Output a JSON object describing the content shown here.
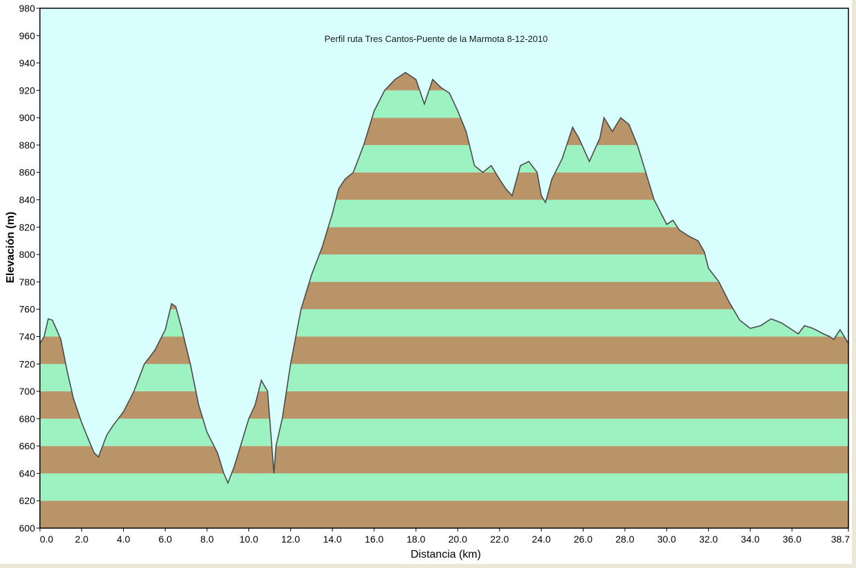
{
  "chart_data": {
    "type": "area",
    "title": "Perfil ruta Tres Cantos-Puente de la Marmota 8-12-2010",
    "xlabel": "Distancia   (km)",
    "ylabel": "Elevación (m)",
    "xlim": [
      0,
      38.7
    ],
    "ylim": [
      600,
      980
    ],
    "x_ticks": [
      "0.0",
      "2.0",
      "4.0",
      "6.0",
      "8.0",
      "10.0",
      "12.0",
      "14.0",
      "16.0",
      "18.0",
      "20.0",
      "22.0",
      "24.0",
      "26.0",
      "28.0",
      "30.0",
      "32.0",
      "34.0",
      "36.0",
      "38.7"
    ],
    "x_tick_values": [
      0,
      2,
      4,
      6,
      8,
      10,
      12,
      14,
      16,
      18,
      20,
      22,
      24,
      26,
      28,
      30,
      32,
      34,
      36,
      38.7
    ],
    "y_ticks": [
      600,
      620,
      640,
      660,
      680,
      700,
      720,
      740,
      760,
      780,
      800,
      820,
      840,
      860,
      880,
      900,
      920,
      940,
      960,
      980
    ],
    "band_step": 20,
    "grid": false,
    "legend": "none",
    "colors": {
      "plot_bg": "#d8fefe",
      "band_green": "#9cf2c0",
      "band_brown": "#b89468",
      "line": "#4a4a4a",
      "sky_above": "#d8fefe"
    },
    "series": [
      {
        "x": [
          0,
          0.2,
          0.4,
          0.6,
          0.8,
          1.0,
          1.3,
          1.6,
          2.0,
          2.4,
          2.6,
          2.8,
          3.0,
          3.2,
          3.5,
          4.0,
          4.5,
          5.0,
          5.5,
          6.0,
          6.3,
          6.5,
          6.8,
          7.2,
          7.6,
          8.0,
          8.5,
          8.8,
          9.0,
          9.3,
          9.6,
          10.0,
          10.3,
          10.6,
          10.9,
          11.1,
          11.2,
          11.3,
          11.6,
          12.0,
          12.5,
          13.0,
          13.5,
          14.0,
          14.3,
          14.6,
          15.0,
          15.5,
          16.0,
          16.5,
          17.0,
          17.5,
          18.0,
          18.4,
          18.8,
          19.2,
          19.6,
          20.0,
          20.4,
          20.8,
          21.2,
          21.6,
          22.0,
          22.3,
          22.6,
          23.0,
          23.4,
          23.8,
          24.0,
          24.2,
          24.5,
          25.0,
          25.5,
          25.8,
          26.3,
          26.8,
          27.0,
          27.4,
          27.8,
          28.2,
          28.6,
          29.0,
          29.4,
          30.0,
          30.3,
          30.6,
          31.0,
          31.5,
          31.8,
          32.0,
          32.5,
          33.0,
          33.5,
          34.0,
          34.5,
          35.0,
          35.5,
          36.0,
          36.3,
          36.6,
          37.0,
          37.5,
          37.8,
          38.0,
          38.3,
          38.7
        ],
        "y": [
          735,
          740,
          753,
          752,
          745,
          738,
          715,
          695,
          677,
          662,
          655,
          652,
          660,
          668,
          675,
          685,
          700,
          720,
          730,
          745,
          764,
          762,
          745,
          720,
          690,
          670,
          655,
          640,
          633,
          645,
          660,
          680,
          690,
          708,
          700,
          660,
          640,
          660,
          680,
          720,
          760,
          785,
          805,
          830,
          848,
          855,
          860,
          880,
          905,
          920,
          928,
          933,
          928,
          910,
          928,
          922,
          918,
          905,
          890,
          865,
          860,
          865,
          855,
          848,
          843,
          865,
          868,
          860,
          843,
          838,
          855,
          870,
          893,
          885,
          868,
          885,
          900,
          890,
          900,
          895,
          880,
          860,
          840,
          822,
          825,
          818,
          814,
          810,
          802,
          790,
          780,
          765,
          752,
          746,
          748,
          753,
          750,
          745,
          742,
          748,
          746,
          742,
          740,
          738,
          745,
          735
        ]
      }
    ]
  }
}
